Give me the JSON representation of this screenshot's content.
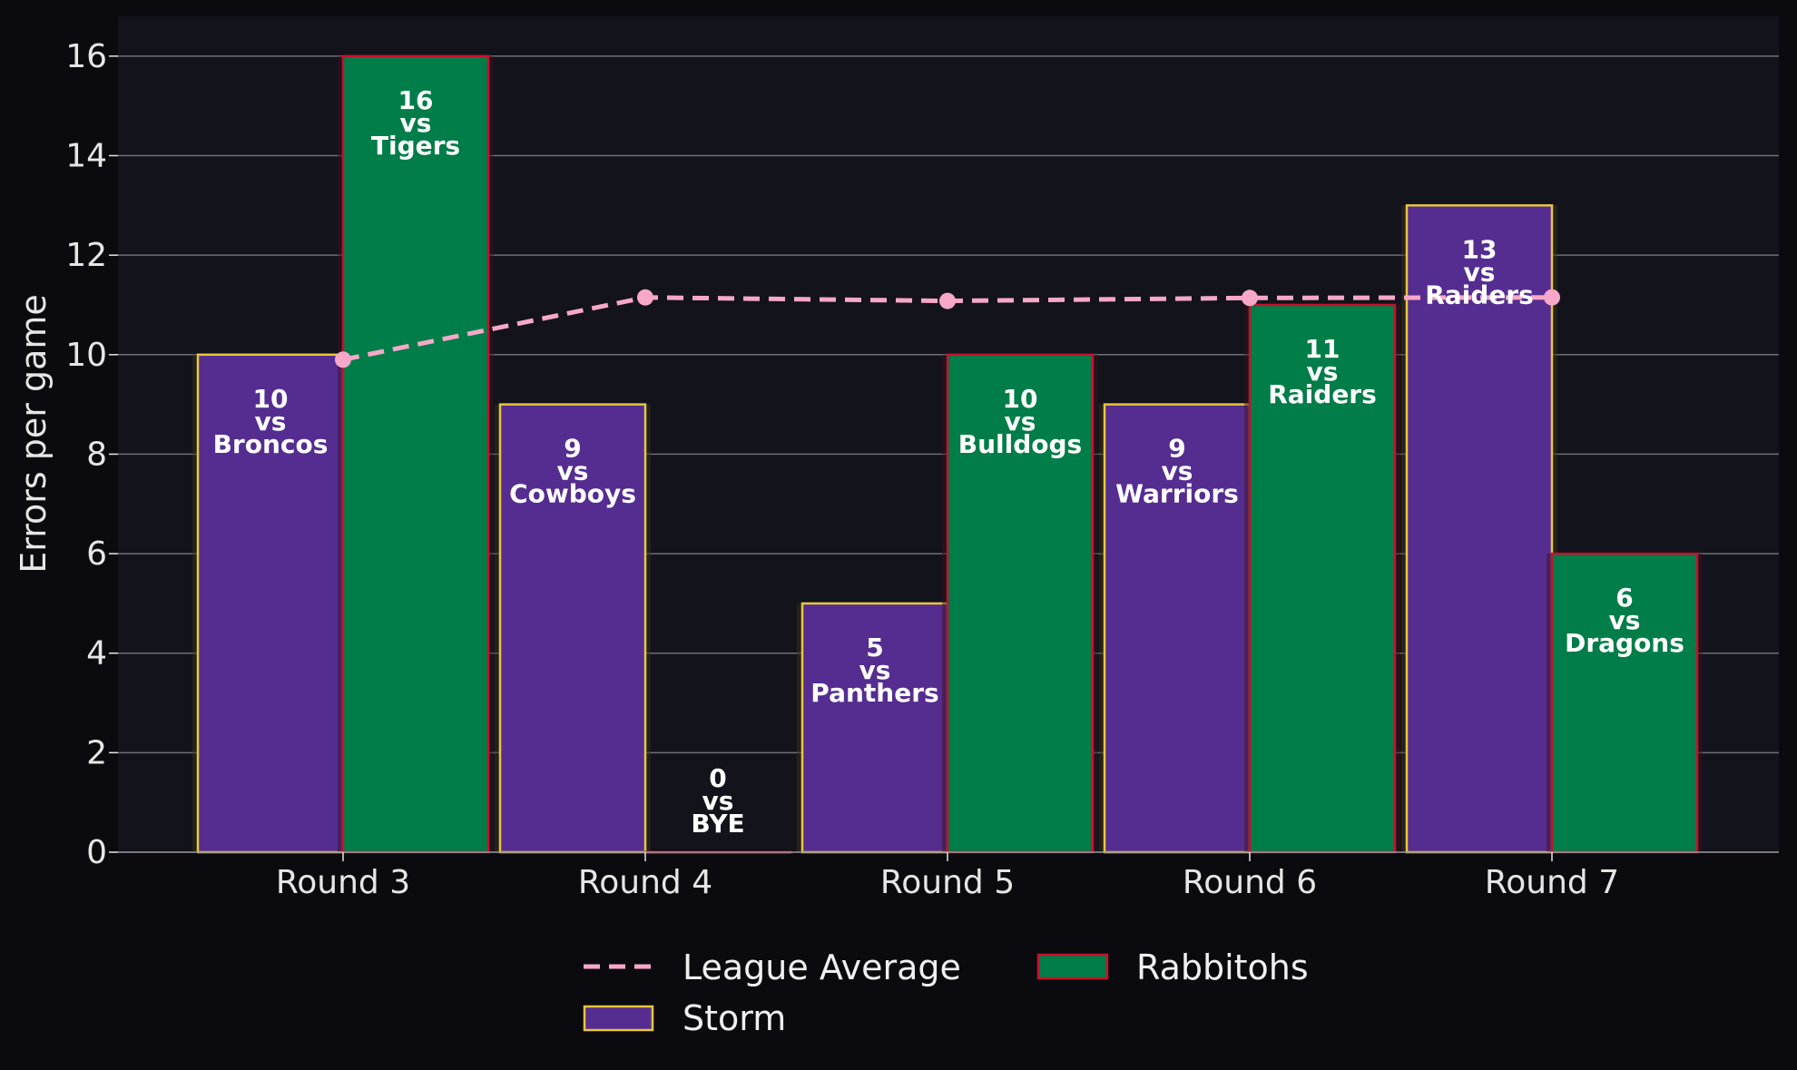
{
  "chart_data": {
    "type": "bar",
    "title": "",
    "xlabel": "",
    "ylabel": "Errors per game",
    "ylim": [
      0,
      16.8
    ],
    "yticks": [
      0,
      2,
      4,
      6,
      8,
      10,
      12,
      14,
      16
    ],
    "grid": "horizontal",
    "legend_position": "bottom-center",
    "categories": [
      "Round 3",
      "Round 4",
      "Round 5",
      "Round 6",
      "Round 7"
    ],
    "series": [
      {
        "name": "Storm",
        "kind": "bar",
        "fill": "#552D91",
        "edge": "#E8C73A",
        "values": [
          10,
          9,
          5,
          9,
          13
        ],
        "labels": [
          [
            "10",
            "vs",
            "Broncos"
          ],
          [
            "9",
            "vs",
            "Cowboys"
          ],
          [
            "5",
            "vs",
            "Panthers"
          ],
          [
            "9",
            "vs",
            "Warriors"
          ],
          [
            "13",
            "vs",
            "Raiders"
          ]
        ]
      },
      {
        "name": "Rabbitohs",
        "kind": "bar",
        "fill": "#007D48",
        "edge": "#C8102E",
        "values": [
          16,
          0,
          10,
          11,
          6
        ],
        "labels": [
          [
            "16",
            "vs",
            "Tigers"
          ],
          [
            "0",
            "vs",
            "BYE"
          ],
          [
            "10",
            "vs",
            "Bulldogs"
          ],
          [
            "11",
            "vs",
            "Raiders"
          ],
          [
            "6",
            "vs",
            "Dragons"
          ]
        ]
      },
      {
        "name": "League Average",
        "kind": "line",
        "style": "dashed",
        "color": "#F7A8C8",
        "values": [
          9.9,
          11.15,
          11.08,
          11.14,
          11.15
        ]
      }
    ]
  },
  "colors": {
    "page_background": "#0b0b0f",
    "plot_background": "#13131b",
    "grid": "#6e6e74",
    "text": "#e6e6e6"
  }
}
